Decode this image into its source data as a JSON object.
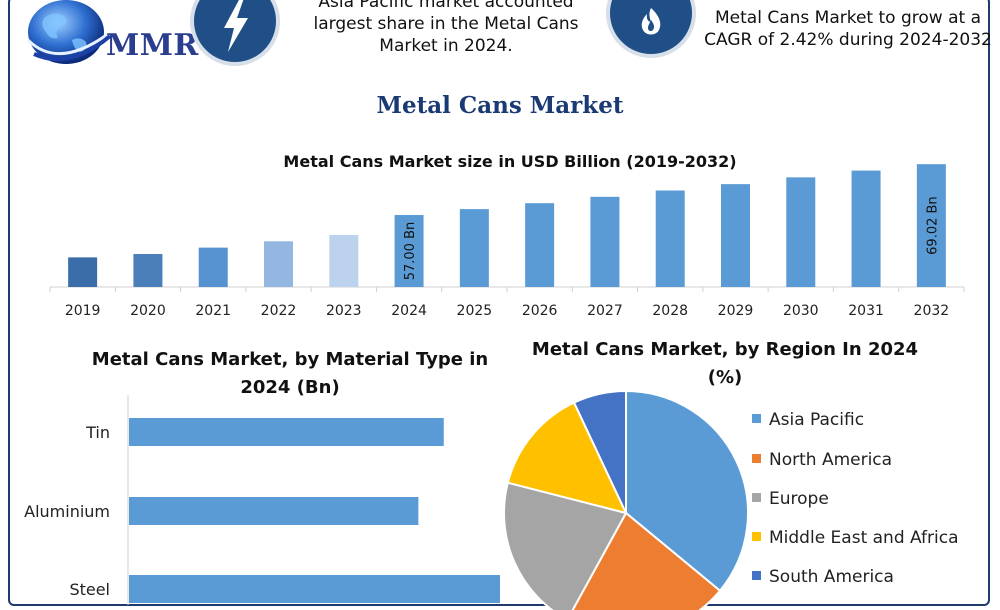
{
  "logo": {
    "text": "MMR",
    "icon": "globe-icon"
  },
  "header": {
    "note_left": {
      "icon": "lightning-bolt-icon",
      "lines": [
        "Asia Pacific market accounted",
        "largest share in the Metal Cans",
        "Market in 2024."
      ]
    },
    "note_right": {
      "icon": "flame-icon",
      "lines": [
        "Metal Cans Market to grow at a",
        "CAGR of 2.42% during 2024-2032"
      ]
    }
  },
  "title": "Metal Cans Market",
  "colors": {
    "frame": "#1f3b6e",
    "badge": "#1f4f86",
    "title": "#1a3a73",
    "bar_primary": "#5b9bd5"
  },
  "chart_data": [
    {
      "type": "bar",
      "title": "Metal Cans Market size in USD Billion (2019-2032)",
      "categories": [
        "2019",
        "2020",
        "2021",
        "2022",
        "2023",
        "2024",
        "2025",
        "2026",
        "2027",
        "2028",
        "2029",
        "2030",
        "2031",
        "2032"
      ],
      "values": [
        47.0,
        47.8,
        49.3,
        50.8,
        52.3,
        57.0,
        58.4,
        59.8,
        61.3,
        62.8,
        64.3,
        65.9,
        67.5,
        69.02
      ],
      "bar_colors": [
        "#3b6da8",
        "#4a7fba",
        "#5592cf",
        "#93b7e0",
        "#bdd3ed",
        "#5b9bd5",
        "#5b9bd5",
        "#5b9bd5",
        "#5b9bd5",
        "#5b9bd5",
        "#5b9bd5",
        "#5b9bd5",
        "#5b9bd5",
        "#5b9bd5"
      ],
      "data_labels": {
        "2024": "57.00 Bn",
        "2032": "69.02 Bn"
      },
      "xlabel": "",
      "ylabel": "",
      "ylim": [
        40,
        70
      ],
      "grid": false,
      "legend": "none"
    },
    {
      "type": "bar",
      "orientation": "horizontal",
      "title": "Metal Cans Market, by Material Type in 2024 (Bn)",
      "categories": [
        "Tin",
        "Aluminium",
        "Steel"
      ],
      "values": [
        18.6,
        17.1,
        23.0
      ],
      "color": "#5b9bd5",
      "xlim": [
        0,
        26
      ],
      "grid": false,
      "legend": "none"
    },
    {
      "type": "pie",
      "title": "Metal Cans Market, by Region In 2024 (%)",
      "labels": [
        "Asia Pacific",
        "North America",
        "Europe",
        "Middle East and Africa",
        "South America"
      ],
      "values": [
        36,
        22,
        21,
        14,
        7
      ],
      "colors": [
        "#5b9bd5",
        "#ed7d31",
        "#a5a5a5",
        "#ffc000",
        "#4472c4"
      ],
      "legend": "right"
    }
  ]
}
